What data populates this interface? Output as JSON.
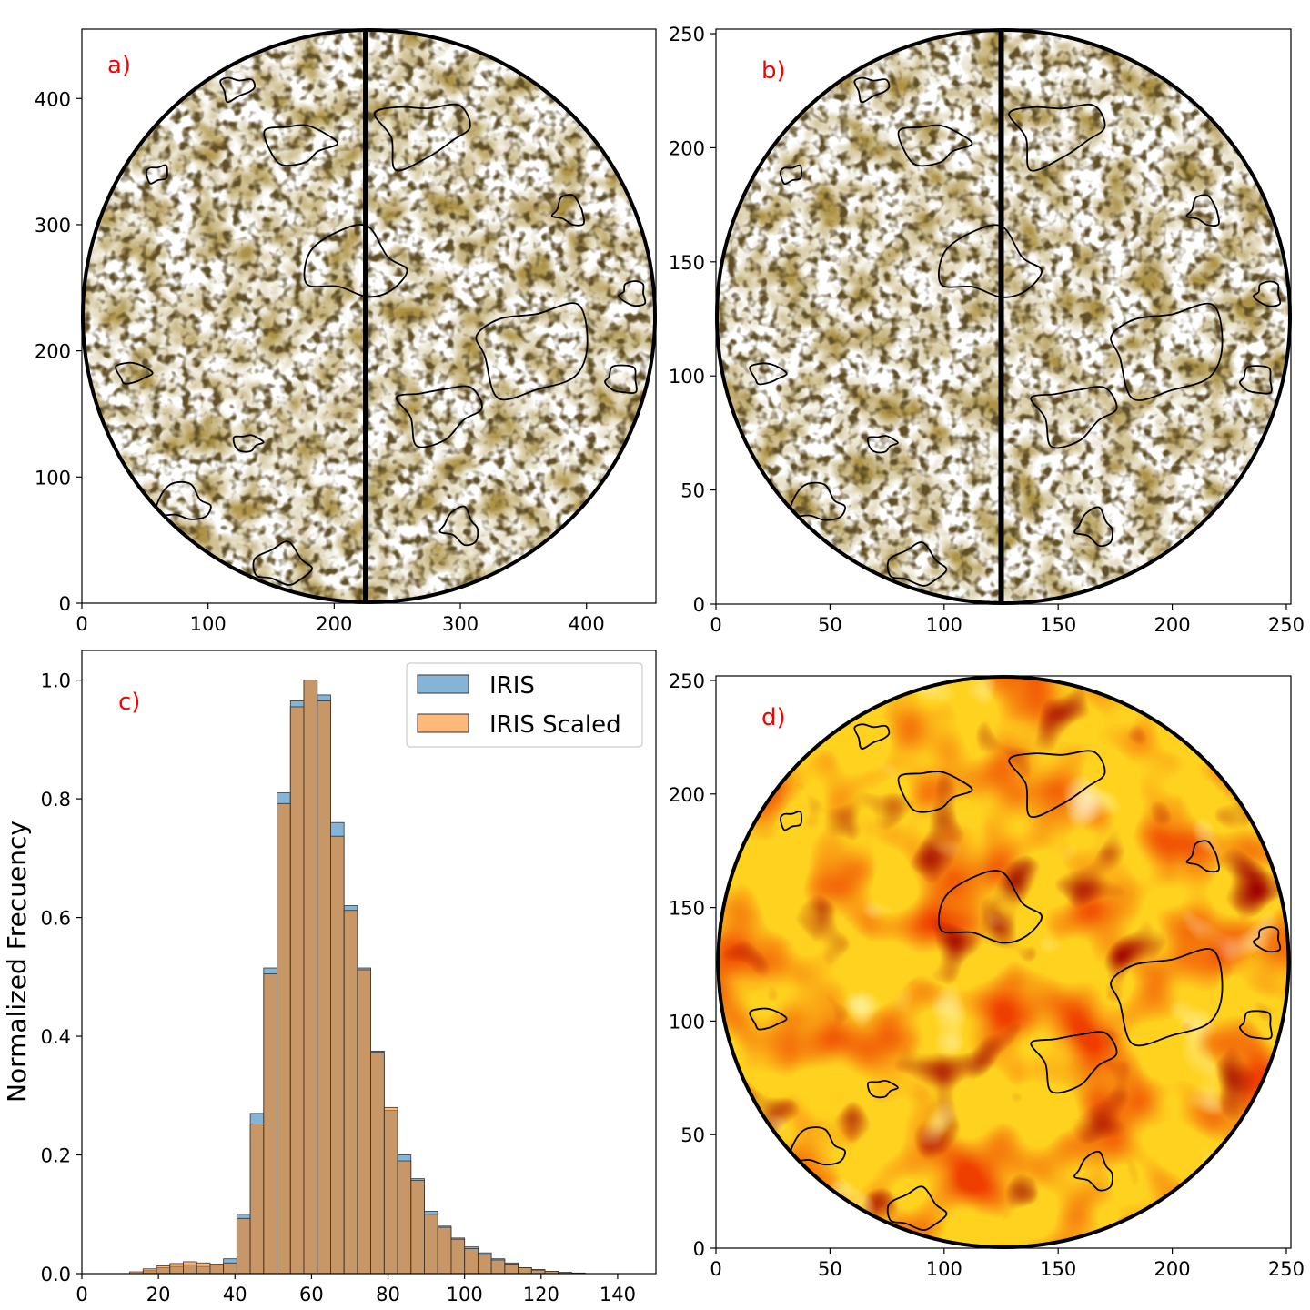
{
  "panels": {
    "a": {
      "label": "a)"
    },
    "b": {
      "label": "b)"
    },
    "c": {
      "label": "c)"
    },
    "d": {
      "label": "d)"
    }
  },
  "colors": {
    "panel_label": "#ff0000",
    "iris": "#1f77b4",
    "iris_scaled": "#ff7f0e",
    "contour": "#000000",
    "map_dark": "#6b4a10",
    "map_light": "#ffffff"
  },
  "chart_data": [
    {
      "id": "a",
      "type": "heatmap",
      "title": "",
      "xlabel": "",
      "ylabel": "",
      "xlim": [
        0,
        455
      ],
      "ylim": [
        0,
        455
      ],
      "xticks": [
        0,
        100,
        200,
        300,
        400
      ],
      "yticks": [
        0,
        100,
        200,
        300,
        400
      ],
      "colormap": "brown-white",
      "circular_field": true,
      "contours": true,
      "vertical_line_x": 225
    },
    {
      "id": "b",
      "type": "heatmap",
      "title": "",
      "xlabel": "",
      "ylabel": "",
      "xlim": [
        0,
        252
      ],
      "ylim": [
        0,
        252
      ],
      "xticks": [
        0,
        50,
        100,
        150,
        200,
        250
      ],
      "yticks": [
        0,
        50,
        100,
        150,
        200,
        250
      ],
      "colormap": "brown-white",
      "circular_field": true,
      "contours": true,
      "vertical_line_x": 125
    },
    {
      "id": "c",
      "type": "bar",
      "title": "",
      "xlabel": "",
      "ylabel": "Normalized Frecuency",
      "xlim": [
        0,
        150
      ],
      "ylim": [
        0,
        1.05
      ],
      "xticks": [
        0,
        20,
        40,
        60,
        80,
        100,
        120,
        140
      ],
      "yticks": [
        0.0,
        0.2,
        0.4,
        0.6,
        0.8,
        1.0
      ],
      "ytick_labels": [
        "0.0",
        "0.2",
        "0.4",
        "0.6",
        "0.8",
        "1.0"
      ],
      "legend_position": "top-right",
      "bin_width": 3.5,
      "bin_starts": [
        12.5,
        16,
        19.5,
        23,
        26.5,
        30,
        33.5,
        37,
        40.5,
        44,
        47.5,
        51,
        54.5,
        58,
        61.5,
        65,
        68.5,
        72,
        75.5,
        79,
        82.5,
        86,
        89.5,
        93,
        96.5,
        100,
        103.5,
        107,
        110.5,
        114,
        117.5,
        121,
        124.5,
        128,
        131.5
      ],
      "series": [
        {
          "name": "IRIS",
          "values": [
            0.0,
            0.005,
            0.01,
            0.012,
            0.015,
            0.012,
            0.015,
            0.025,
            0.1,
            0.27,
            0.515,
            0.81,
            0.965,
            1.0,
            0.975,
            0.76,
            0.62,
            0.515,
            0.375,
            0.275,
            0.2,
            0.16,
            0.105,
            0.08,
            0.06,
            0.045,
            0.035,
            0.025,
            0.018,
            0.01,
            0.007,
            0.004,
            0.002,
            0.001,
            0.0
          ]
        },
        {
          "name": "IRIS Scaled",
          "values": [
            0.003,
            0.008,
            0.013,
            0.017,
            0.02,
            0.018,
            0.016,
            0.018,
            0.093,
            0.252,
            0.505,
            0.792,
            0.955,
            1.0,
            0.965,
            0.737,
            0.612,
            0.512,
            0.373,
            0.28,
            0.19,
            0.157,
            0.1,
            0.078,
            0.058,
            0.042,
            0.032,
            0.023,
            0.016,
            0.01,
            0.006,
            0.004,
            0.002,
            0.001,
            0.0
          ]
        }
      ]
    },
    {
      "id": "d",
      "type": "heatmap",
      "title": "",
      "xlabel": "",
      "ylabel": "",
      "xlim": [
        0,
        252
      ],
      "ylim": [
        0,
        252
      ],
      "xticks": [
        0,
        50,
        100,
        150,
        200,
        250
      ],
      "yticks": [
        0,
        50,
        100,
        150,
        200,
        250
      ],
      "colormap": "hot",
      "circular_field": true,
      "contours": true
    }
  ]
}
